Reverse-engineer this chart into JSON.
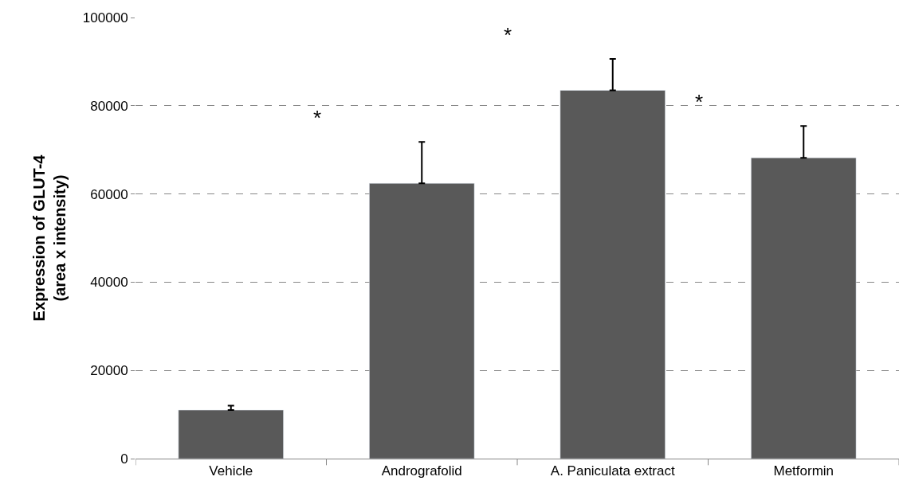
{
  "chart_data": {
    "type": "bar",
    "ylabel": "Expression of GLUT-4\n(area x intensity)",
    "categories": [
      "Vehicle",
      "Andrografolid",
      "A. Paniculata extract",
      "Metformin"
    ],
    "values": [
      11000,
      62400,
      83500,
      68200
    ],
    "errors": [
      [
        11000,
        12000
      ],
      [
        62400,
        71800
      ],
      [
        83500,
        90600
      ],
      [
        68200,
        75400
      ]
    ],
    "color": "#595959",
    "ylim": [
      0,
      100000
    ],
    "yticks": [
      0,
      20000,
      40000,
      60000,
      80000,
      100000
    ],
    "grid": "y",
    "annotations": [
      "*",
      "*",
      "*"
    ]
  }
}
